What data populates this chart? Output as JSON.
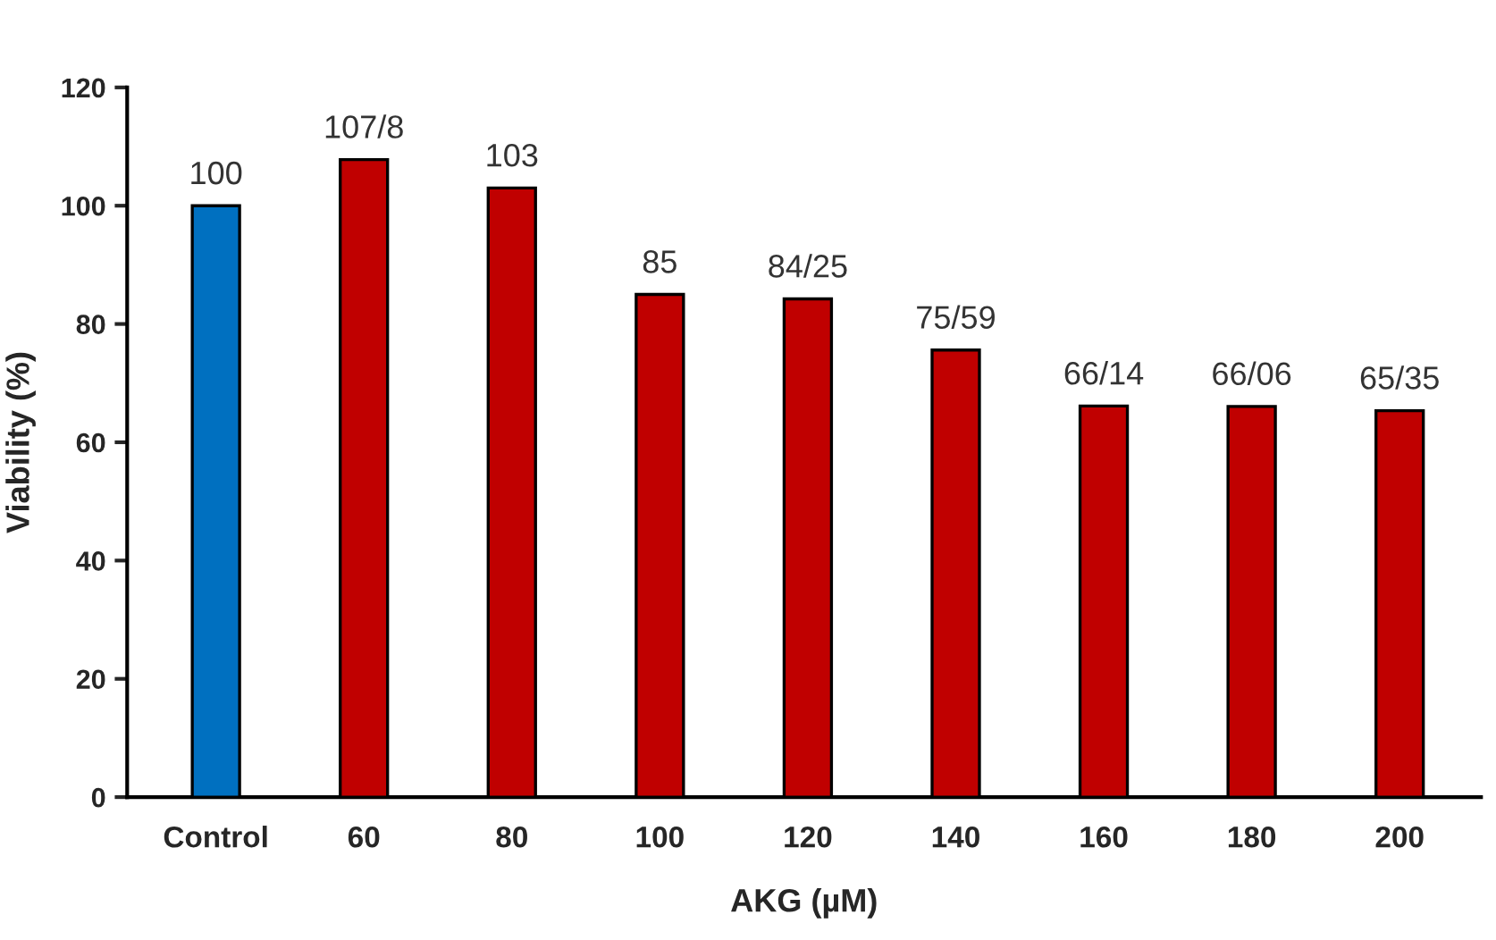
{
  "chart_data": {
    "type": "bar",
    "xlabel": "AKG (µM)",
    "ylabel": "Viability (%)",
    "categories": [
      "Control",
      "60",
      "80",
      "100",
      "120",
      "140",
      "160",
      "180",
      "200"
    ],
    "values": [
      100,
      107.8,
      103,
      85,
      84.25,
      75.59,
      66.14,
      66.06,
      65.35
    ],
    "value_labels": [
      "100",
      "107/8",
      "103",
      "85",
      "84/25",
      "75/59",
      "66/14",
      "66/06",
      "65/35"
    ],
    "colors": [
      "#0070c0",
      "#c00000",
      "#c00000",
      "#c00000",
      "#c00000",
      "#c00000",
      "#c00000",
      "#c00000",
      "#c00000"
    ],
    "ylim": [
      0,
      120
    ],
    "yticks": [
      0,
      20,
      40,
      60,
      80,
      100,
      120
    ],
    "grid": false,
    "legend": false
  }
}
